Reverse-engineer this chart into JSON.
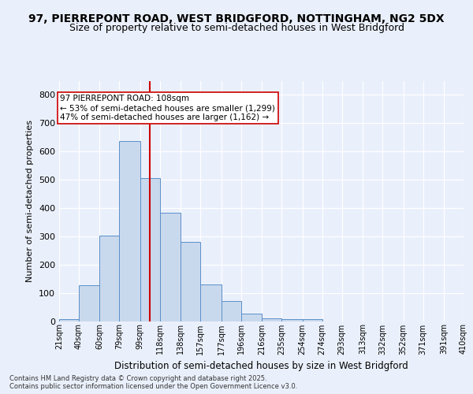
{
  "title_line1": "97, PIERREPONT ROAD, WEST BRIDGFORD, NOTTINGHAM, NG2 5DX",
  "title_line2": "Size of property relative to semi-detached houses in West Bridgford",
  "xlabel": "Distribution of semi-detached houses by size in West Bridgford",
  "ylabel": "Number of semi-detached properties",
  "bar_edges": [
    21,
    40,
    60,
    79,
    99,
    118,
    138,
    157,
    177,
    196,
    216,
    235,
    255,
    274,
    293,
    313,
    332,
    352,
    371,
    391,
    410
  ],
  "bar_heights": [
    8,
    128,
    302,
    638,
    505,
    384,
    280,
    130,
    70,
    27,
    11,
    8,
    6,
    0,
    0,
    0,
    0,
    0,
    0,
    0
  ],
  "bar_color": "#c9d9ed",
  "bar_edge_color": "#5b8fc9",
  "vline_x": 108,
  "vline_color": "#cc0000",
  "annotation_text": "97 PIERREPONT ROAD: 108sqm\n← 53% of semi-detached houses are smaller (1,299)\n47% of semi-detached houses are larger (1,162) →",
  "annotation_box_edge": "#cc0000",
  "annotation_box_face": "#ffffff",
  "ylim": [
    0,
    850
  ],
  "yticks": [
    0,
    100,
    200,
    300,
    400,
    500,
    600,
    700,
    800
  ],
  "tick_labels": [
    "21sqm",
    "40sqm",
    "60sqm",
    "79sqm",
    "99sqm",
    "118sqm",
    "138sqm",
    "157sqm",
    "177sqm",
    "196sqm",
    "216sqm",
    "235sqm",
    "254sqm",
    "274sqm",
    "293sqm",
    "313sqm",
    "332sqm",
    "352sqm",
    "371sqm",
    "391sqm",
    "410sqm"
  ],
  "bg_color": "#eaf0fb",
  "plot_bg_color": "#eaf0fb",
  "footer_text": "Contains HM Land Registry data © Crown copyright and database right 2025.\nContains public sector information licensed under the Open Government Licence v3.0.",
  "grid_color": "#ffffff",
  "title_fontsize": 10,
  "subtitle_fontsize": 9
}
